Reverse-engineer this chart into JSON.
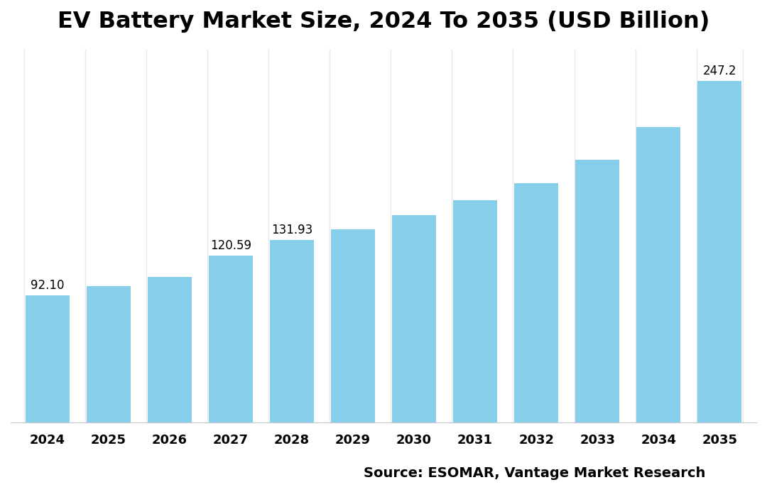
{
  "title": "EV Battery Market Size, 2024 To 2035 (USD Billion)",
  "categories": [
    "2024",
    "2025",
    "2026",
    "2027",
    "2028",
    "2029",
    "2030",
    "2031",
    "2032",
    "2033",
    "2034",
    "2035"
  ],
  "values": [
    92.1,
    98.5,
    105.5,
    120.59,
    131.93,
    140.0,
    150.0,
    161.0,
    173.0,
    190.0,
    214.0,
    247.2
  ],
  "labeled_bars": [
    0,
    3,
    4,
    11
  ],
  "bar_color": "#87CEEB",
  "background_color": "#ffffff",
  "title_fontsize": 23,
  "tick_fontsize": 13,
  "label_fontsize": 12,
  "source_text": "Source: ESOMAR, Vantage Market Research",
  "source_fontsize": 14,
  "ylim": [
    0,
    270
  ],
  "grid_color": "#e8e8e8",
  "spine_color": "#cccccc"
}
